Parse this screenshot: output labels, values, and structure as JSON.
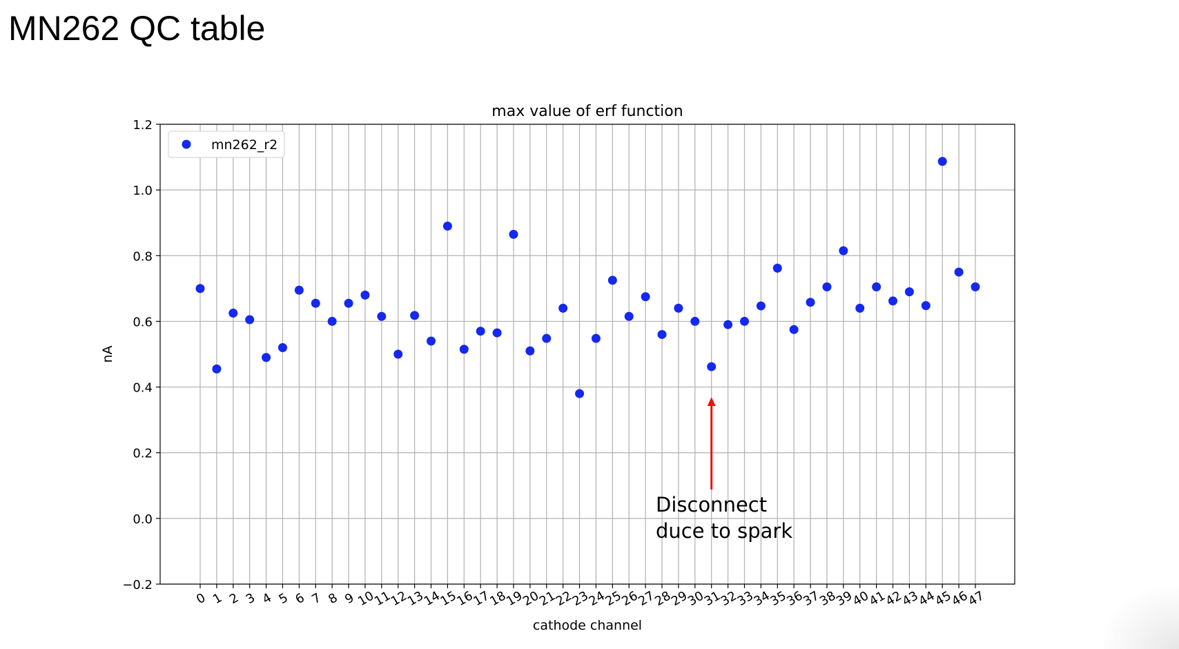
{
  "slide": {
    "title": "MN262 QC table"
  },
  "annotation": {
    "text_line1": "Disconnect",
    "text_line2": "duce to spark",
    "target_channel": 31,
    "arrow_color": "#ee1111"
  },
  "colors": {
    "point": "#1428f0",
    "grid": "#b0b0b0",
    "axis": "#000000"
  },
  "chart_data": {
    "type": "scatter",
    "title": "max value of erf function",
    "xlabel": "cathode channel",
    "ylabel": "nA",
    "ylim": [
      -0.2,
      1.2
    ],
    "yticks": [
      -0.2,
      0.0,
      0.2,
      0.4,
      0.6,
      0.8,
      1.0,
      1.2
    ],
    "ytick_labels": [
      "−0.2",
      "0.0",
      "0.2",
      "0.4",
      "0.6",
      "0.8",
      "1.0",
      "1.2"
    ],
    "xticks": [
      0,
      1,
      2,
      3,
      4,
      5,
      6,
      7,
      8,
      9,
      10,
      11,
      12,
      13,
      14,
      15,
      16,
      17,
      18,
      19,
      20,
      21,
      22,
      23,
      24,
      25,
      26,
      27,
      28,
      29,
      30,
      31,
      32,
      33,
      34,
      35,
      36,
      37,
      38,
      39,
      40,
      41,
      42,
      43,
      44,
      45,
      46,
      47
    ],
    "grid": true,
    "legend_position": "top-left",
    "series": [
      {
        "name": "mn262_r2",
        "x": [
          0,
          1,
          2,
          3,
          4,
          5,
          6,
          7,
          8,
          9,
          10,
          11,
          12,
          13,
          14,
          15,
          16,
          17,
          18,
          19,
          20,
          21,
          22,
          23,
          24,
          25,
          26,
          27,
          28,
          29,
          30,
          31,
          32,
          33,
          34,
          35,
          36,
          37,
          38,
          39,
          40,
          41,
          42,
          43,
          44,
          45,
          46,
          47
        ],
        "y": [
          0.7,
          0.455,
          0.625,
          0.605,
          0.49,
          0.52,
          0.695,
          0.655,
          0.6,
          0.655,
          0.68,
          0.615,
          0.5,
          0.618,
          0.54,
          0.89,
          0.515,
          0.57,
          0.565,
          0.865,
          0.51,
          0.548,
          0.64,
          0.38,
          0.548,
          0.725,
          0.615,
          0.675,
          0.56,
          0.64,
          0.6,
          0.462,
          0.59,
          0.6,
          0.647,
          0.762,
          0.575,
          0.658,
          0.705,
          0.815,
          0.64,
          0.705,
          0.662,
          0.69,
          0.648,
          1.087,
          0.75,
          0.705
        ]
      }
    ]
  }
}
